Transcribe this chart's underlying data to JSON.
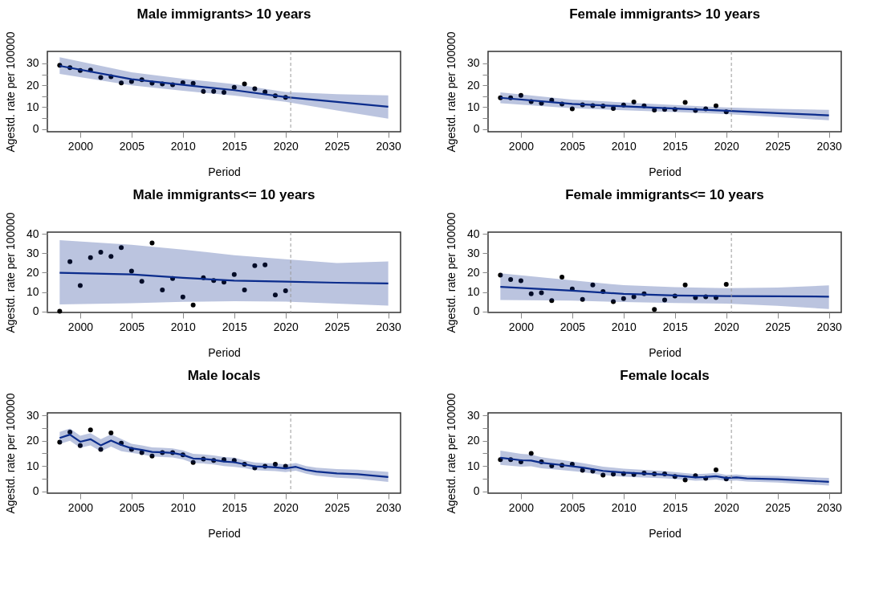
{
  "chart_data": [
    {
      "type": "line",
      "title": "Male immigrants> 10 years",
      "xlabel": "Period",
      "ylabel": "Agestd. rate per 100000",
      "xlim": [
        1996.8,
        2031.2
      ],
      "xticks": [
        2000,
        2005,
        2010,
        2015,
        2020,
        2025,
        2030
      ],
      "ylim": [
        -1.2,
        35.5
      ],
      "yticks": [
        0,
        {
          "value": 5,
          "label": null
        },
        10,
        {
          "value": 15,
          "label": null
        },
        20,
        {
          "value": 25,
          "label": null
        },
        30
      ],
      "ref_lines": [
        {
          "axis": "x",
          "value": 2020.5,
          "color": "#999999",
          "line_style": "dashed"
        }
      ],
      "series": [
        {
          "type": "scatter",
          "marker": "circle",
          "color": "#000000",
          "x": [
            1998,
            1999,
            2000,
            2001,
            2002,
            2003,
            2004,
            2005,
            2006,
            2007,
            2008,
            2009,
            2010,
            2011,
            2012,
            2013,
            2014,
            2015,
            2016,
            2017,
            2018,
            2019,
            2020
          ],
          "values": [
            29.2,
            28.1,
            26.8,
            27.0,
            23.6,
            23.9,
            21.1,
            21.7,
            22.6,
            21.0,
            20.6,
            20.3,
            21.2,
            20.9,
            17.2,
            17.2,
            16.8,
            19.1,
            20.6,
            18.4,
            17.0,
            15.2,
            14.5
          ]
        },
        {
          "type": "line",
          "marker": "none",
          "color": "#0b2c8c",
          "x": [
            1998,
            2005,
            2010,
            2015,
            2020,
            2025,
            2030
          ],
          "values": [
            28.9,
            22.8,
            20.2,
            17.8,
            14.6,
            12.4,
            10.2
          ],
          "lower": [
            25.2,
            20,
            17.5,
            15.3,
            12.5,
            8.5,
            4.8
          ],
          "upper": [
            32.8,
            26,
            23,
            20.5,
            17,
            16,
            15.4
          ]
        }
      ]
    },
    {
      "type": "line",
      "title": "Female immigrants> 10 years",
      "xlabel": "Period",
      "ylabel": "Agestd. rate per 100000",
      "xlim": [
        1996.8,
        2031.2
      ],
      "xticks": [
        2000,
        2005,
        2010,
        2015,
        2020,
        2025,
        2030
      ],
      "ylim": [
        -1.2,
        35.5
      ],
      "yticks": [
        0,
        {
          "value": 5,
          "label": null
        },
        10,
        {
          "value": 15,
          "label": null
        },
        20,
        {
          "value": 25,
          "label": null
        },
        30
      ],
      "ref_lines": [
        {
          "axis": "x",
          "value": 2020.5,
          "color": "#999999",
          "line_style": "dashed"
        }
      ],
      "series": [
        {
          "type": "scatter",
          "marker": "circle",
          "color": "#000000",
          "x": [
            1998,
            1999,
            2000,
            2001,
            2002,
            2003,
            2004,
            2005,
            2006,
            2007,
            2008,
            2009,
            2010,
            2011,
            2012,
            2013,
            2014,
            2015,
            2016,
            2017,
            2018,
            2019,
            2020
          ],
          "values": [
            14.3,
            14.3,
            15.4,
            12.6,
            11.8,
            13.2,
            11.5,
            9.3,
            11.1,
            10.7,
            10.5,
            9.4,
            11.0,
            12.4,
            10.6,
            8.7,
            9.0,
            9.0,
            12.2,
            8.5,
            9.3,
            10.6,
            7.9
          ]
        },
        {
          "type": "line",
          "marker": "none",
          "color": "#0b2c8c",
          "x": [
            1998,
            2005,
            2010,
            2015,
            2020,
            2025,
            2030
          ],
          "values": [
            14.3,
            11.5,
            10.4,
            9.4,
            8.4,
            7.3,
            6.3
          ],
          "lower": [
            11.8,
            9.5,
            8.6,
            7.8,
            6.9,
            5.5,
            4.0
          ],
          "upper": [
            16.8,
            13.5,
            12.2,
            11,
            9.9,
            9.3,
            8.8
          ]
        }
      ]
    },
    {
      "type": "line",
      "title": "Male immigrants<= 10 years",
      "xlabel": "Period",
      "ylabel": "Agestd. rate per 100000",
      "xlim": [
        1996.8,
        2031.2
      ],
      "xticks": [
        2000,
        2005,
        2010,
        2015,
        2020,
        2025,
        2030
      ],
      "ylim": [
        -0.6,
        41
      ],
      "yticks": [
        0,
        10,
        20,
        30,
        40
      ],
      "ref_lines": [
        {
          "axis": "x",
          "value": 2020.5,
          "color": "#999999",
          "line_style": "dashed"
        }
      ],
      "series": [
        {
          "type": "scatter",
          "marker": "circle",
          "color": "#000000",
          "x": [
            1998,
            1999,
            2000,
            2001,
            2002,
            2003,
            2004,
            2005,
            2006,
            2007,
            2008,
            2009,
            2010,
            2011,
            2012,
            2013,
            2014,
            2015,
            2016,
            2017,
            2018,
            2019,
            2020
          ],
          "values": [
            0.0,
            25.7,
            13.3,
            27.8,
            30.6,
            28.4,
            33.0,
            20.8,
            15.5,
            35.4,
            11.0,
            17.0,
            7.4,
            3.3,
            17.4,
            15.9,
            15.1,
            19.1,
            11.0,
            23.6,
            24.0,
            8.5,
            10.6
          ]
        },
        {
          "type": "line",
          "marker": "none",
          "color": "#0b2c8c",
          "x": [
            1998,
            2005,
            2010,
            2015,
            2020,
            2025,
            2030
          ],
          "values": [
            19.9,
            19.1,
            17.3,
            15.9,
            15.4,
            14.8,
            14.4
          ],
          "lower": [
            3.6,
            4.2,
            4.9,
            5.2,
            5.0,
            4.0,
            2.9
          ],
          "upper": [
            36.8,
            34.5,
            32,
            29,
            27,
            25,
            25.8
          ]
        }
      ]
    },
    {
      "type": "line",
      "title": "Female immigrants<= 10 years",
      "xlabel": "Period",
      "ylabel": "Agestd. rate per 100000",
      "xlim": [
        1996.8,
        2031.2
      ],
      "xticks": [
        2000,
        2005,
        2010,
        2015,
        2020,
        2025,
        2030
      ],
      "ylim": [
        -0.6,
        41
      ],
      "yticks": [
        0,
        10,
        20,
        30,
        40
      ],
      "ref_lines": [
        {
          "axis": "x",
          "value": 2020.5,
          "color": "#999999",
          "line_style": "dashed"
        }
      ],
      "series": [
        {
          "type": "scatter",
          "marker": "circle",
          "color": "#000000",
          "x": [
            1998,
            1999,
            2000,
            2001,
            2002,
            2003,
            2004,
            2005,
            2006,
            2007,
            2008,
            2009,
            2010,
            2011,
            2012,
            2013,
            2014,
            2015,
            2016,
            2017,
            2018,
            2019,
            2020
          ],
          "values": [
            18.7,
            16.5,
            15.8,
            9.1,
            9.6,
            5.5,
            17.7,
            11.6,
            6.2,
            13.6,
            10.2,
            5.0,
            6.6,
            7.5,
            9.1,
            1.0,
            5.8,
            7.9,
            13.7,
            7.1,
            7.5,
            7.1,
            14.0
          ]
        },
        {
          "type": "line",
          "marker": "none",
          "color": "#0b2c8c",
          "x": [
            1998,
            2005,
            2010,
            2015,
            2020,
            2025,
            2030
          ],
          "values": [
            12.7,
            10.7,
            9.0,
            8.2,
            7.9,
            7.8,
            7.6
          ],
          "lower": [
            5.8,
            5.5,
            4.8,
            4.3,
            4.0,
            2.8,
            1.2
          ],
          "upper": [
            19.7,
            16,
            13.5,
            12.5,
            12,
            12.3,
            13.4
          ]
        }
      ]
    },
    {
      "type": "line",
      "title": "Male locals",
      "xlabel": "Period",
      "ylabel": "Agestd. rate per 100000",
      "xlim": [
        1996.8,
        2031.2
      ],
      "xticks": [
        2000,
        2005,
        2010,
        2015,
        2020,
        2025,
        2030
      ],
      "ylim": [
        -0.7,
        31
      ],
      "yticks": [
        0,
        {
          "value": 5,
          "label": null
        },
        10,
        {
          "value": 15,
          "label": null
        },
        20,
        {
          "value": 25,
          "label": null
        },
        30
      ],
      "ref_lines": [
        {
          "axis": "x",
          "value": 2020.5,
          "color": "#999999",
          "line_style": "dashed"
        }
      ],
      "series": [
        {
          "type": "scatter",
          "marker": "circle",
          "color": "#000000",
          "x": [
            1998,
            1999,
            2000,
            2001,
            2002,
            2003,
            2004,
            2005,
            2006,
            2007,
            2008,
            2009,
            2010,
            2011,
            2012,
            2013,
            2014,
            2015,
            2016,
            2017,
            2018,
            2019,
            2020
          ],
          "values": [
            19.4,
            23.4,
            18.1,
            24.3,
            16.6,
            23.1,
            19.0,
            16.6,
            15.3,
            14.0,
            15.3,
            15.3,
            14.4,
            11.4,
            12.8,
            12.2,
            12.5,
            12.2,
            10.7,
            9.3,
            9.9,
            10.7,
            9.9
          ]
        },
        {
          "type": "line",
          "marker": "none",
          "color": "#0b2c8c",
          "x": [
            1998,
            1999,
            2000,
            2001,
            2002,
            2003,
            2004,
            2005,
            2006,
            2007,
            2008,
            2009,
            2010,
            2011,
            2012,
            2013,
            2014,
            2015,
            2016,
            2017,
            2018,
            2019,
            2020,
            2021,
            2022,
            2023,
            2025,
            2027,
            2030
          ],
          "values": [
            21.1,
            22.4,
            19.6,
            20.6,
            18.2,
            20.1,
            18.3,
            17.0,
            16.4,
            15.6,
            15.4,
            15.2,
            14.4,
            13.0,
            12.8,
            12.4,
            11.8,
            11.5,
            10.7,
            9.9,
            9.7,
            9.5,
            9.1,
            9.7,
            8.5,
            7.8,
            7.1,
            6.8,
            5.7
          ],
          "lower": [
            18.7,
            20.0,
            17.2,
            18.2,
            15.8,
            17.7,
            15.9,
            15.2,
            14.6,
            13.8,
            13.6,
            13.4,
            12.6,
            11.2,
            11.0,
            10.6,
            10.0,
            9.7,
            9.2,
            8.4,
            8.2,
            8.0,
            7.6,
            8.2,
            7.0,
            6.2,
            5.4,
            5.0,
            3.7
          ],
          "upper": [
            23.5,
            24.8,
            22.0,
            23.0,
            20.6,
            22.5,
            20.7,
            18.8,
            18.2,
            17.4,
            17.2,
            17.0,
            16.2,
            14.8,
            14.6,
            14.2,
            13.6,
            13.3,
            12.2,
            11.4,
            11.2,
            11.0,
            10.6,
            11.2,
            10.0,
            9.4,
            8.8,
            8.6,
            7.7
          ]
        }
      ]
    },
    {
      "type": "line",
      "title": "Female locals",
      "xlabel": "Period",
      "ylabel": "Agestd. rate per 100000",
      "xlim": [
        1996.8,
        2031.2
      ],
      "xticks": [
        2000,
        2005,
        2010,
        2015,
        2020,
        2025,
        2030
      ],
      "ylim": [
        -0.7,
        31
      ],
      "yticks": [
        0,
        {
          "value": 5,
          "label": null
        },
        10,
        {
          "value": 15,
          "label": null
        },
        20,
        {
          "value": 25,
          "label": null
        },
        30
      ],
      "ref_lines": [
        {
          "axis": "x",
          "value": 2020.5,
          "color": "#999999",
          "line_style": "dashed"
        }
      ],
      "series": [
        {
          "type": "scatter",
          "marker": "circle",
          "color": "#000000",
          "x": [
            1998,
            1999,
            2000,
            2001,
            2002,
            2003,
            2004,
            2005,
            2006,
            2007,
            2008,
            2009,
            2010,
            2011,
            2012,
            2013,
            2014,
            2015,
            2016,
            2017,
            2018,
            2019,
            2020
          ],
          "values": [
            12.5,
            12.5,
            11.7,
            15.0,
            11.7,
            10.1,
            10.3,
            10.7,
            8.3,
            8.0,
            6.4,
            6.8,
            7.0,
            6.7,
            7.2,
            6.9,
            6.9,
            5.9,
            4.5,
            6.2,
            5.2,
            8.5,
            4.9
          ]
        },
        {
          "type": "line",
          "marker": "none",
          "color": "#0b2c8c",
          "x": [
            1998,
            2000,
            2001,
            2002,
            2004,
            2006,
            2008,
            2010,
            2012,
            2014,
            2016,
            2017,
            2018,
            2019,
            2020,
            2021,
            2022,
            2025,
            2030
          ],
          "values": [
            13.3,
            12.3,
            12.2,
            11.3,
            10.4,
            9.4,
            8.1,
            7.4,
            7.0,
            6.6,
            5.9,
            5.5,
            5.7,
            6.0,
            5.3,
            5.5,
            5.1,
            4.8,
            3.8
          ],
          "lower": [
            10.5,
            9.8,
            9.9,
            9.1,
            8.4,
            7.6,
            6.4,
            5.8,
            5.5,
            5.2,
            4.6,
            4.2,
            4.4,
            4.7,
            4.1,
            4.3,
            3.9,
            3.5,
            2.3
          ],
          "upper": [
            16.1,
            14.8,
            14.5,
            13.5,
            12.4,
            11.2,
            9.8,
            9.0,
            8.5,
            8.0,
            7.2,
            6.8,
            7.0,
            7.3,
            6.5,
            6.7,
            6.3,
            6.1,
            5.3
          ]
        }
      ]
    }
  ]
}
